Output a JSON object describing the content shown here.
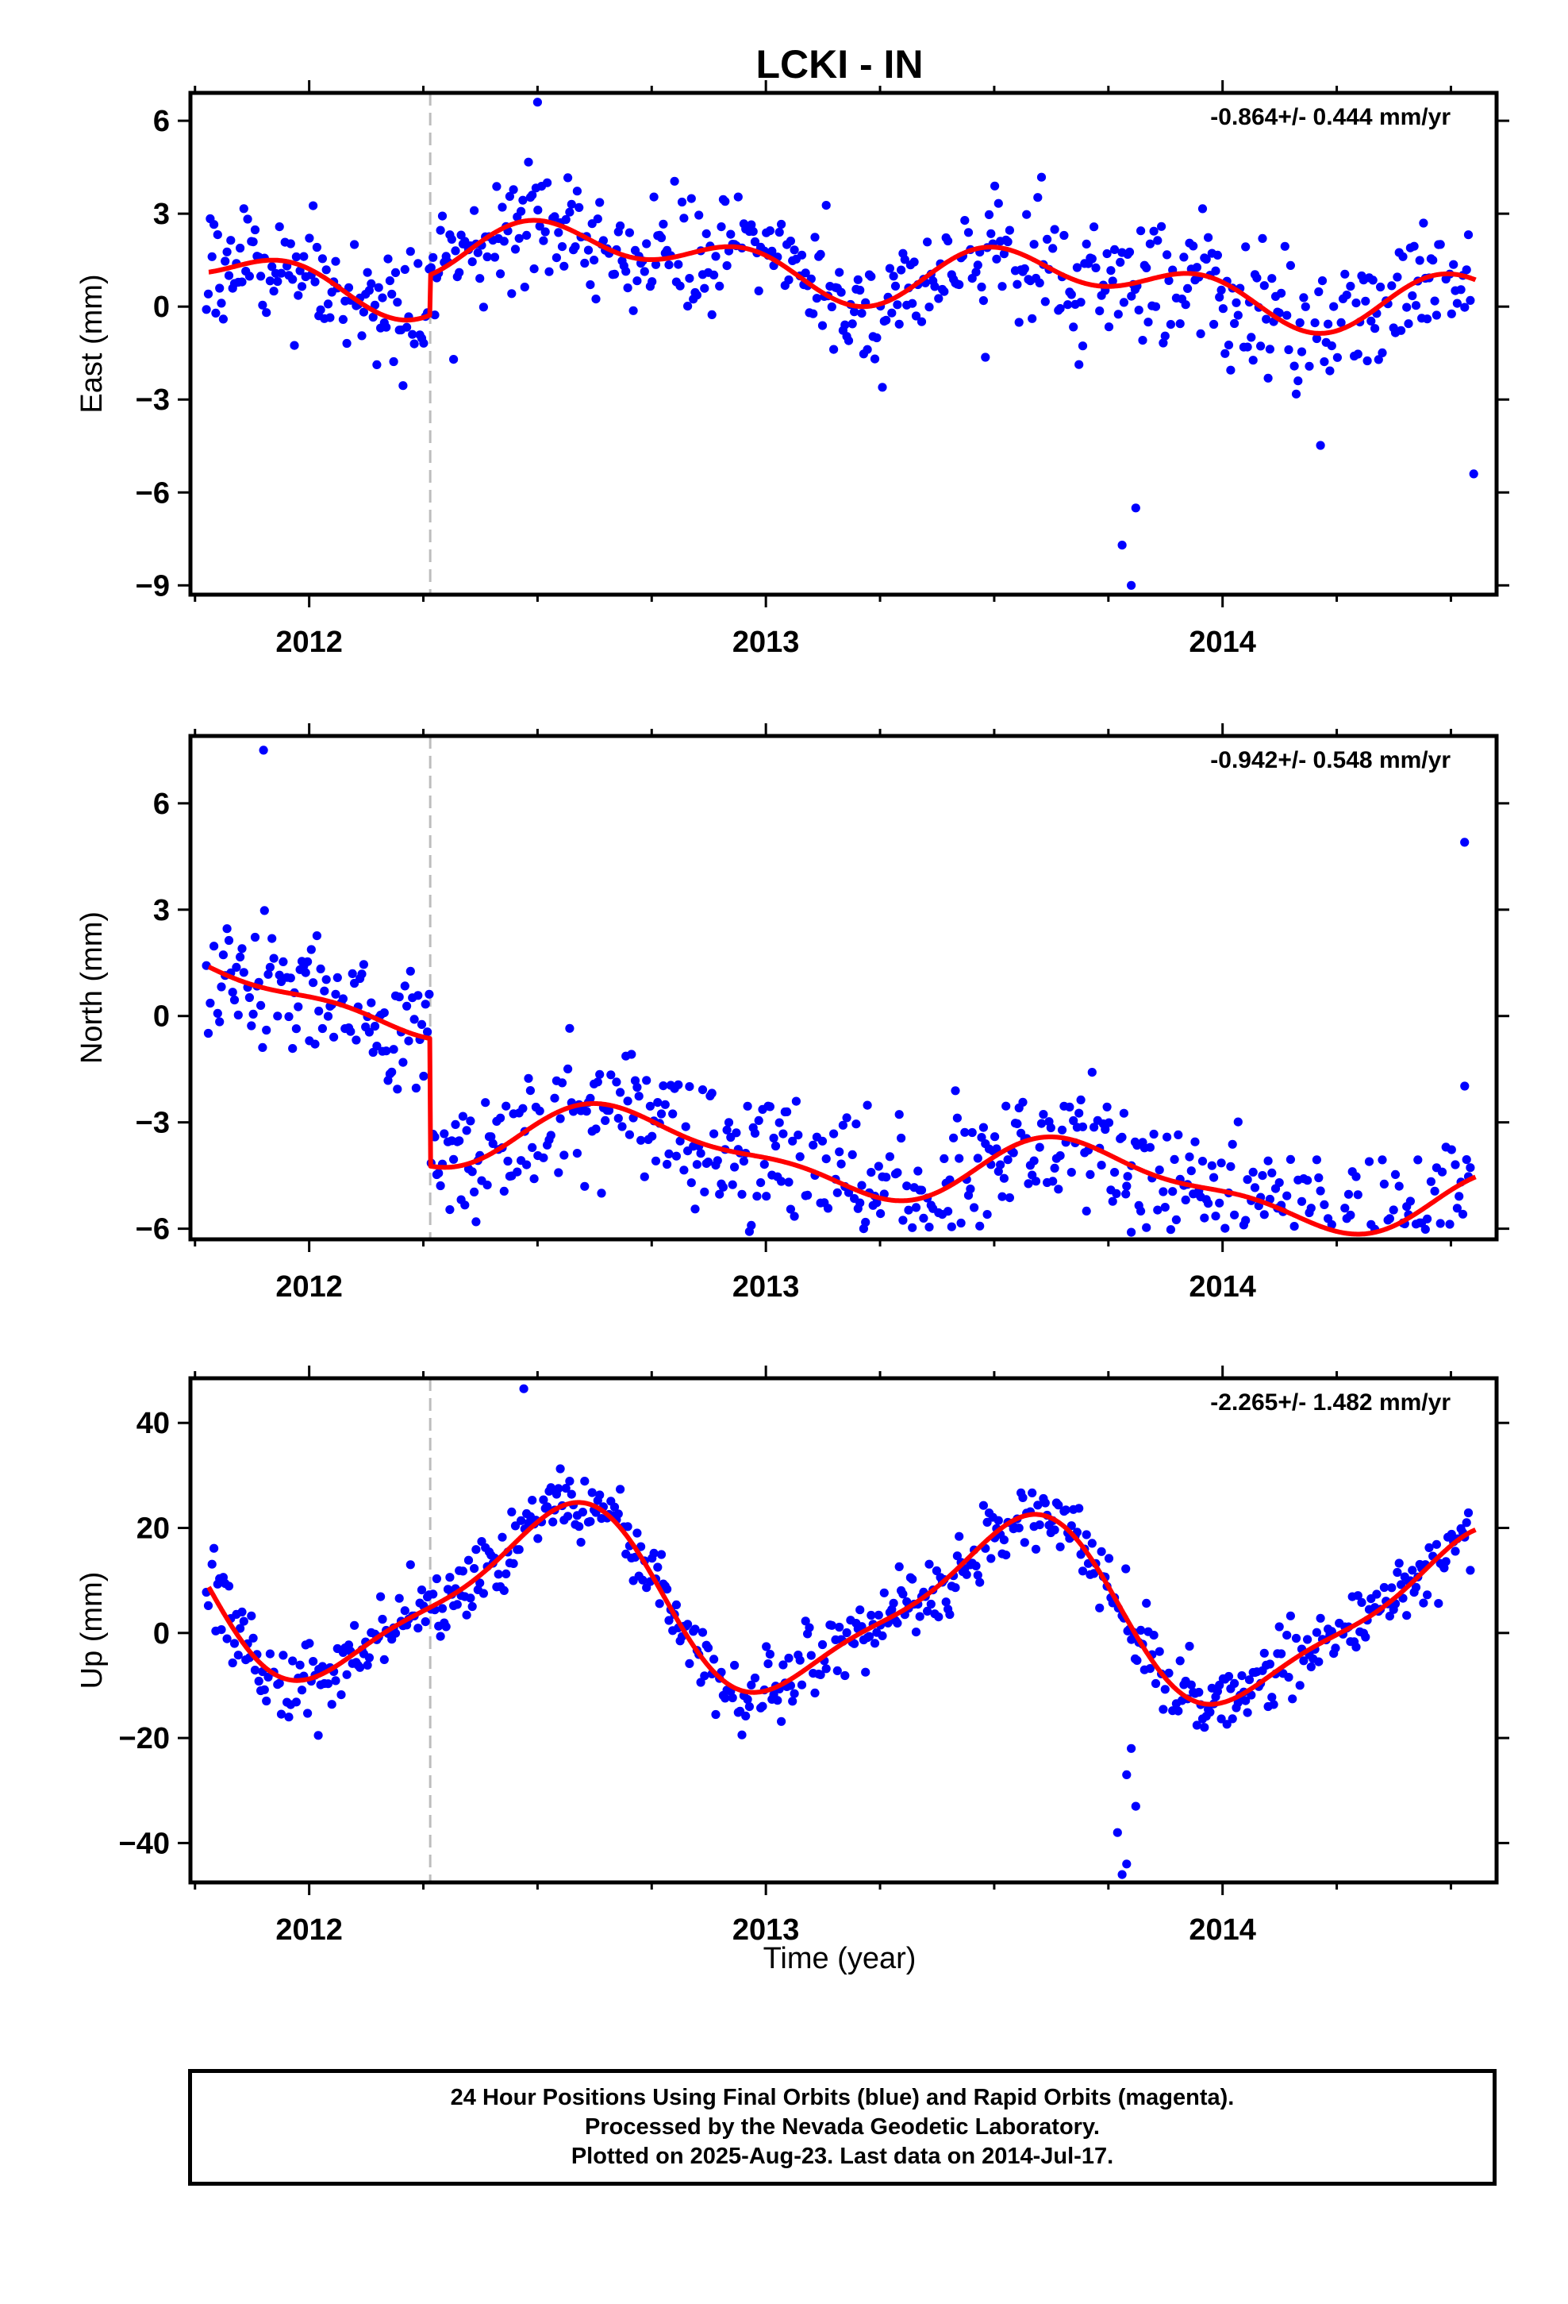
{
  "chart_data": {
    "title": "LCKI - IN",
    "type": "scatter",
    "x_tick_labels": [
      "2012",
      "2013",
      "2014"
    ],
    "xlim": [
      2011.74,
      2014.6
    ],
    "xlabel": "Time (year)",
    "equipment_change_epoch": 2012.265,
    "colors": {
      "final_orbits": "#0000ff",
      "model": "#ff0000",
      "equipment_change": "#bdbdbd",
      "rapid_orbits": "#ff00ff"
    },
    "panels": [
      {
        "component": "East",
        "ylabel": "East (mm)",
        "ylim": [
          -9.3,
          6.9
        ],
        "yticks": [
          6,
          3,
          0,
          -3,
          -6,
          -9
        ],
        "ytick_labels": [
          "6",
          "3",
          "0",
          "−3",
          "−6",
          "−9"
        ],
        "rate_text": "-0.864+/- 0.444 mm/yr",
        "seasonal": {
          "offset": 0.1,
          "rate": -0.864,
          "annual": [
            -0.35,
            -0.5
          ],
          "semiannual": [
            0.6,
            -0.25
          ],
          "steps": [
            {
              "epoch": 2012.265,
              "size": 1.3
            }
          ]
        },
        "outliers": [
          {
            "x": 2012.5,
            "y": 6.6
          },
          {
            "x": 2013.78,
            "y": -7.7
          },
          {
            "x": 2013.8,
            "y": -9.0
          },
          {
            "x": 2013.81,
            "y": -6.5
          },
          {
            "x": 2014.55,
            "y": -5.4
          }
        ]
      },
      {
        "component": "North",
        "ylabel": "North (mm)",
        "ylim": [
          -6.3,
          7.9
        ],
        "yticks": [
          6,
          3,
          0,
          -3,
          -6
        ],
        "ytick_labels": [
          "6",
          "3",
          "0",
          "−3",
          "−6"
        ],
        "rate_text": "-0.942+/- 0.548 mm/yr",
        "seasonal": {
          "offset": -0.3,
          "rate": -0.942,
          "annual": [
            -0.25,
            -0.85
          ],
          "semiannual": [
            0.15,
            0.3
          ],
          "steps": [
            {
              "epoch": 2012.265,
              "size": -3.6
            }
          ]
        },
        "outliers": [
          {
            "x": 2011.9,
            "y": 7.5
          },
          {
            "x": 2013.8,
            "y": -6.1
          },
          {
            "x": 2014.53,
            "y": 4.9
          },
          {
            "x": 2013.79,
            "y": -4.8
          }
        ]
      },
      {
        "component": "Up",
        "ylabel": "Up (mm)",
        "ylim": [
          -47.5,
          48.5
        ],
        "yticks": [
          40,
          20,
          0,
          -20,
          -40
        ],
        "ytick_labels": [
          "40",
          "20",
          "0",
          "−20",
          "−40"
        ],
        "rate_text": "-2.265+/- 1.482 mm/yr",
        "seasonal": {
          "offset": 5.5,
          "rate": -2.265,
          "annual": [
            -15.5,
            -4.0
          ],
          "semiannual": [
            -1.0,
            4.0
          ],
          "steps": []
        },
        "outliers": [
          {
            "x": 2012.47,
            "y": 46.5
          },
          {
            "x": 2013.77,
            "y": -38.0
          },
          {
            "x": 2013.78,
            "y": -46.0
          },
          {
            "x": 2013.8,
            "y": -22.0
          },
          {
            "x": 2013.79,
            "y": -44.0
          },
          {
            "x": 2013.81,
            "y": -33.0
          },
          {
            "x": 2013.79,
            "y": -27.0
          },
          {
            "x": 2012.02,
            "y": -19.5
          }
        ]
      }
    ]
  },
  "footer": {
    "line1": "24 Hour Positions Using Final Orbits (blue) and Rapid Orbits (magenta).",
    "line2": "Processed by the Nevada Geodetic Laboratory.",
    "line3": "Plotted on 2025-Aug-23. Last data on 2014-Jul-17."
  }
}
